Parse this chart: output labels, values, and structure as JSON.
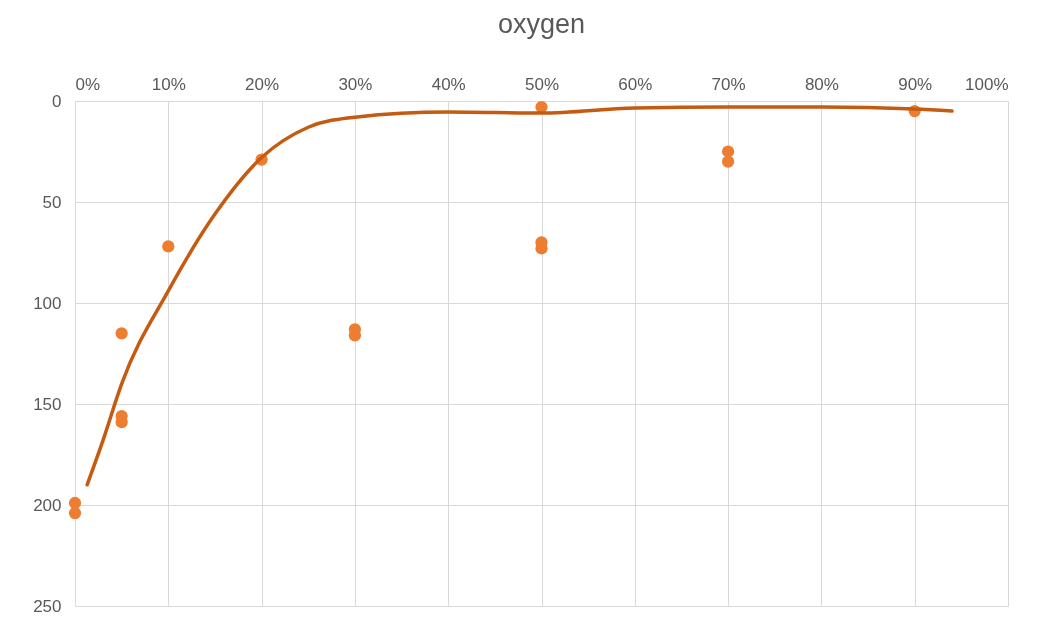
{
  "chart_data": {
    "type": "scatter",
    "title": "oxygen",
    "xlim": [
      0,
      100
    ],
    "xticks": [
      {
        "value": 0,
        "label": "0%"
      },
      {
        "value": 10,
        "label": "10%"
      },
      {
        "value": 20,
        "label": "20%"
      },
      {
        "value": 30,
        "label": "30%"
      },
      {
        "value": 40,
        "label": "40%"
      },
      {
        "value": 50,
        "label": "50%"
      },
      {
        "value": 60,
        "label": "60%"
      },
      {
        "value": 70,
        "label": "70%"
      },
      {
        "value": 80,
        "label": "80%"
      },
      {
        "value": 90,
        "label": "90%"
      },
      {
        "value": 100,
        "label": "100%"
      }
    ],
    "ylim": [
      250,
      0
    ],
    "yticks": [
      0,
      50,
      100,
      150,
      200,
      250
    ],
    "grid": true,
    "series": [
      {
        "color": "#ed7d31",
        "marker": "circle",
        "x": [
          0,
          0,
          5,
          5,
          5,
          10,
          20,
          30,
          30,
          50,
          50,
          50,
          70,
          70,
          90
        ],
        "values": [
          199,
          204,
          115,
          156,
          159,
          72,
          29,
          113,
          116,
          3,
          70,
          73,
          25,
          30,
          5
        ]
      },
      {
        "type": "line",
        "color": "#c55a11",
        "line_style": "solid",
        "x": [
          1.3,
          3,
          5,
          10,
          15,
          20,
          25,
          30,
          40,
          50,
          60,
          70,
          80,
          90,
          94
        ],
        "values": [
          190,
          168,
          140,
          94,
          56,
          28,
          13,
          8,
          5.5,
          6,
          3.5,
          3,
          3,
          4,
          5
        ]
      }
    ]
  }
}
